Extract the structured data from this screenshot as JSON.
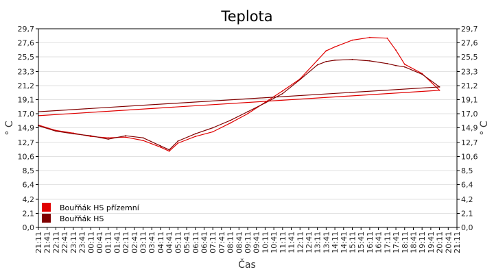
{
  "chart_data": {
    "type": "line",
    "title": "Teplota",
    "xlabel": "Čas",
    "ylabel": "° C",
    "ylim": [
      0,
      29.7
    ],
    "yticks": [
      "0,0",
      "2,1",
      "4,2",
      "6,4",
      "8,5",
      "10,6",
      "12,7",
      "14,9",
      "17,0",
      "19,1",
      "21,2",
      "23,3",
      "25,5",
      "27,6",
      "29,7"
    ],
    "ytick_values": [
      0,
      2.1,
      4.2,
      6.4,
      8.5,
      10.6,
      12.7,
      14.9,
      17.0,
      19.1,
      21.2,
      23.3,
      25.5,
      27.6,
      29.7
    ],
    "xticks": [
      "21:11",
      "21:41",
      "22:11",
      "22:41",
      "23:11",
      "23:41",
      "00:11",
      "00:41",
      "01:11",
      "01:41",
      "02:11",
      "02:41",
      "03:11",
      "03:41",
      "04:11",
      "04:41",
      "05:11",
      "05:41",
      "06:11",
      "06:41",
      "07:11",
      "07:41",
      "08:11",
      "08:41",
      "09:11",
      "09:41",
      "10:11",
      "10:41",
      "11:11",
      "11:41",
      "12:11",
      "12:41",
      "13:11",
      "13:41",
      "14:11",
      "14:41",
      "15:11",
      "15:41",
      "16:11",
      "16:41",
      "17:11",
      "17:41",
      "18:11",
      "18:41",
      "19:11",
      "19:41",
      "20:11",
      "20:41",
      "21:11"
    ],
    "grid": true,
    "legend_position": "bottom-left",
    "x": [
      "21:11",
      "22:11",
      "23:11",
      "00:11",
      "01:11",
      "02:11",
      "03:11",
      "04:11",
      "04:41",
      "05:11",
      "06:11",
      "07:11",
      "08:11",
      "09:11",
      "10:11",
      "11:11",
      "12:11",
      "13:11",
      "13:41",
      "14:11",
      "15:11",
      "16:11",
      "17:11",
      "17:41",
      "18:11",
      "19:11",
      "20:11",
      "21:11"
    ],
    "series": [
      {
        "name": "Bouřňák HS přízemní",
        "color": "#e00000",
        "values": [
          15.3,
          14.5,
          14.1,
          13.6,
          13.4,
          13.5,
          13.0,
          12.0,
          11.4,
          12.6,
          13.6,
          14.3,
          15.6,
          17.0,
          18.7,
          20.4,
          22.2,
          25.0,
          26.4,
          27.0,
          28.0,
          28.4,
          28.3,
          26.5,
          24.4,
          23.0,
          20.5,
          16.7
        ]
      },
      {
        "name": "Bouřňák HS",
        "color": "#800000",
        "values": [
          15.2,
          14.4,
          14.0,
          13.7,
          13.2,
          13.7,
          13.4,
          12.2,
          11.6,
          12.9,
          14.0,
          14.9,
          16.0,
          17.3,
          18.6,
          20.0,
          22.1,
          24.3,
          24.8,
          25.0,
          25.1,
          24.9,
          24.5,
          24.2,
          24.0,
          22.9,
          21.0,
          17.3
        ]
      }
    ]
  }
}
